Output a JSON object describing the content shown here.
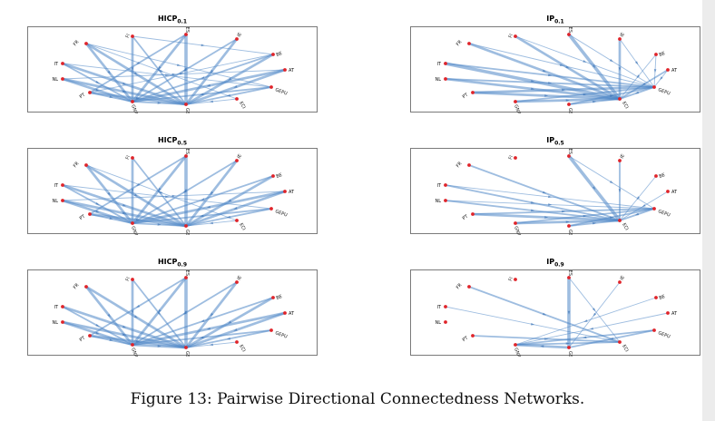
{
  "caption": "Figure 13: Pairwise Directional Connectedness Networks.",
  "nodes": [
    "FR",
    "FI",
    "ES",
    "IE",
    "BE",
    "AT",
    "GEPU",
    "ECI",
    "GSCPI",
    "GNIP",
    "PT",
    "NL",
    "IT"
  ],
  "panels": [
    {
      "id": "hicp-0-1",
      "title_main": "HICP",
      "title_sub": "0.1",
      "edges": [
        [
          "FR",
          "GSCPI",
          3
        ],
        [
          "FR",
          "GNIP",
          3
        ],
        [
          "FR",
          "ECI",
          1
        ],
        [
          "FR",
          "GEPU",
          1
        ],
        [
          "FI",
          "GSCPI",
          2
        ],
        [
          "FI",
          "GNIP",
          3
        ],
        [
          "FI",
          "BE",
          1
        ],
        [
          "ES",
          "GSCPI",
          4
        ],
        [
          "ES",
          "GNIP",
          3
        ],
        [
          "ES",
          "PT",
          2
        ],
        [
          "IE",
          "GSCPI",
          3
        ],
        [
          "IE",
          "GNIP",
          2
        ],
        [
          "BE",
          "GSCPI",
          3
        ],
        [
          "BE",
          "GNIP",
          2
        ],
        [
          "AT",
          "GSCPI",
          3
        ],
        [
          "AT",
          "GNIP",
          3
        ],
        [
          "GEPU",
          "GSCPI",
          2
        ],
        [
          "GEPU",
          "GNIP",
          2
        ],
        [
          "PT",
          "GSCPI",
          3
        ],
        [
          "PT",
          "GNIP",
          2
        ],
        [
          "NL",
          "GSCPI",
          3
        ],
        [
          "NL",
          "GNIP",
          3
        ],
        [
          "IT",
          "GSCPI",
          3
        ],
        [
          "IT",
          "GNIP",
          2
        ],
        [
          "IT",
          "GEPU",
          1
        ],
        [
          "NL",
          "AT",
          1
        ],
        [
          "PT",
          "BE",
          1
        ],
        [
          "ECI",
          "GSCPI",
          1
        ],
        [
          "GNIP",
          "GSCPI",
          2
        ]
      ]
    },
    {
      "id": "ip-0-1",
      "title_main": "IP",
      "title_sub": "0.1",
      "edges": [
        [
          "FR",
          "ECI",
          3
        ],
        [
          "FI",
          "ECI",
          3
        ],
        [
          "ES",
          "ECI",
          4
        ],
        [
          "IE",
          "ECI",
          3
        ],
        [
          "BE",
          "ECI",
          1
        ],
        [
          "AT",
          "ECI",
          2
        ],
        [
          "GEPU",
          "ECI",
          2
        ],
        [
          "GSCPI",
          "ECI",
          2
        ],
        [
          "GNIP",
          "ECI",
          3
        ],
        [
          "PT",
          "ECI",
          3
        ],
        [
          "NL",
          "ECI",
          3
        ],
        [
          "IT",
          "ECI",
          4
        ],
        [
          "IT",
          "GEPU",
          2
        ],
        [
          "NL",
          "GEPU",
          2
        ],
        [
          "PT",
          "GEPU",
          3
        ],
        [
          "GNIP",
          "GEPU",
          2
        ],
        [
          "GSCPI",
          "GEPU",
          2
        ],
        [
          "ES",
          "GEPU",
          1
        ],
        [
          "FR",
          "GEPU",
          1
        ],
        [
          "FI",
          "GEPU",
          1
        ],
        [
          "BE",
          "GEPU",
          1
        ],
        [
          "AT",
          "GEPU",
          1
        ],
        [
          "IE",
          "GEPU",
          1
        ]
      ]
    },
    {
      "id": "hicp-0-5",
      "title_main": "HICP",
      "title_sub": "0.5",
      "edges": [
        [
          "FR",
          "GSCPI",
          3
        ],
        [
          "FR",
          "GNIP",
          3
        ],
        [
          "FR",
          "ECI",
          1
        ],
        [
          "FI",
          "GSCPI",
          2
        ],
        [
          "FI",
          "GNIP",
          3
        ],
        [
          "ES",
          "GSCPI",
          4
        ],
        [
          "ES",
          "GNIP",
          3
        ],
        [
          "ES",
          "PT",
          2
        ],
        [
          "IE",
          "GSCPI",
          3
        ],
        [
          "IE",
          "GNIP",
          2
        ],
        [
          "BE",
          "GSCPI",
          3
        ],
        [
          "BE",
          "GNIP",
          2
        ],
        [
          "AT",
          "GSCPI",
          3
        ],
        [
          "AT",
          "GNIP",
          3
        ],
        [
          "GEPU",
          "GSCPI",
          2
        ],
        [
          "GEPU",
          "GNIP",
          2
        ],
        [
          "PT",
          "GSCPI",
          3
        ],
        [
          "PT",
          "GNIP",
          2
        ],
        [
          "NL",
          "GSCPI",
          3
        ],
        [
          "NL",
          "GNIP",
          3
        ],
        [
          "IT",
          "GSCPI",
          3
        ],
        [
          "IT",
          "GNIP",
          2
        ],
        [
          "IT",
          "GEPU",
          1
        ],
        [
          "NL",
          "AT",
          1
        ],
        [
          "ECI",
          "GSCPI",
          1
        ],
        [
          "GNIP",
          "GSCPI",
          2
        ]
      ]
    },
    {
      "id": "ip-0-5",
      "title_main": "IP",
      "title_sub": "0.5",
      "edges": [
        [
          "FR",
          "ECI",
          2
        ],
        [
          "ES",
          "ECI",
          4
        ],
        [
          "IE",
          "ECI",
          2
        ],
        [
          "BE",
          "ECI",
          1
        ],
        [
          "AT",
          "ECI",
          1
        ],
        [
          "GEPU",
          "ECI",
          2
        ],
        [
          "GSCPI",
          "ECI",
          2
        ],
        [
          "GNIP",
          "ECI",
          3
        ],
        [
          "PT",
          "ECI",
          3
        ],
        [
          "NL",
          "ECI",
          2
        ],
        [
          "IT",
          "ECI",
          2
        ],
        [
          "PT",
          "GEPU",
          2
        ],
        [
          "GNIP",
          "GEPU",
          2
        ],
        [
          "GSCPI",
          "GEPU",
          2
        ],
        [
          "ES",
          "GEPU",
          1
        ],
        [
          "NL",
          "GEPU",
          1
        ],
        [
          "IT",
          "GEPU",
          1
        ]
      ]
    },
    {
      "id": "hicp-0-9",
      "title_main": "HICP",
      "title_sub": "0.9",
      "edges": [
        [
          "FR",
          "GSCPI",
          3
        ],
        [
          "FR",
          "GNIP",
          3
        ],
        [
          "FI",
          "GSCPI",
          2
        ],
        [
          "FI",
          "GNIP",
          3
        ],
        [
          "ES",
          "GSCPI",
          4
        ],
        [
          "ES",
          "GNIP",
          3
        ],
        [
          "ES",
          "PT",
          2
        ],
        [
          "IE",
          "GSCPI",
          3
        ],
        [
          "IE",
          "GNIP",
          2
        ],
        [
          "BE",
          "GSCPI",
          3
        ],
        [
          "BE",
          "GNIP",
          2
        ],
        [
          "AT",
          "GSCPI",
          3
        ],
        [
          "AT",
          "GNIP",
          3
        ],
        [
          "GEPU",
          "GSCPI",
          2
        ],
        [
          "GEPU",
          "GNIP",
          2
        ],
        [
          "PT",
          "GSCPI",
          3
        ],
        [
          "PT",
          "GNIP",
          2
        ],
        [
          "NL",
          "GSCPI",
          3
        ],
        [
          "NL",
          "GNIP",
          3
        ],
        [
          "IT",
          "GSCPI",
          3
        ],
        [
          "IT",
          "GNIP",
          2
        ],
        [
          "ECI",
          "GSCPI",
          1
        ],
        [
          "GNIP",
          "GSCPI",
          3
        ]
      ]
    },
    {
      "id": "ip-0-9",
      "title_main": "IP",
      "title_sub": "0.9",
      "edges": [
        [
          "FR",
          "ECI",
          2
        ],
        [
          "ES",
          "ECI",
          1
        ],
        [
          "ES",
          "GSCPI",
          4
        ],
        [
          "PT",
          "ECI",
          2
        ],
        [
          "IT",
          "ECI",
          1
        ],
        [
          "GEPU",
          "GNIP",
          2
        ],
        [
          "GSCPI",
          "GNIP",
          3
        ],
        [
          "GNIP",
          "ECI",
          2
        ],
        [
          "BE",
          "GNIP",
          1
        ],
        [
          "AT",
          "GNIP",
          1
        ],
        [
          "GEPU",
          "GSCPI",
          2
        ],
        [
          "IE",
          "GSCPI",
          1
        ]
      ]
    }
  ]
}
